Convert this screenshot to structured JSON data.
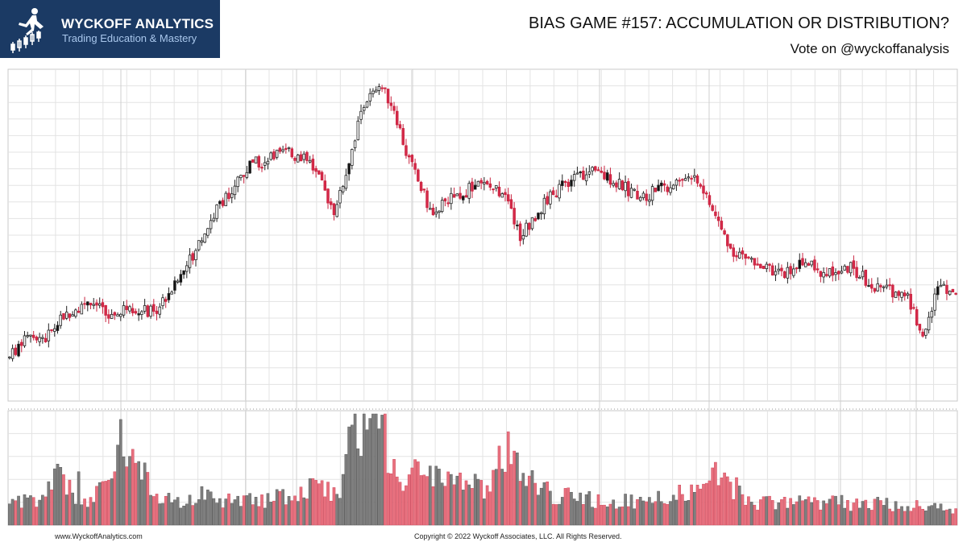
{
  "brand": {
    "name": "WYCKOFF ANALYTICS",
    "tagline": "Trading Education & Mastery",
    "logo_icon": "runner-on-candles-icon",
    "background": "#1b3a64"
  },
  "header": {
    "title": "BIAS GAME #157: ACCUMULATION OR DISTRIBUTION?",
    "subtitle": "Vote on @wyckoffanalysis"
  },
  "footer": {
    "website": "www.WyckoffAnalytics.com",
    "copyright": "Copyright © 2022 Wyckoff Associates, LLC. All Rights Reserved."
  },
  "chart_data": {
    "type": "candlestick",
    "panels": [
      "price",
      "volume"
    ],
    "title": "",
    "xlabel": "",
    "ylabel": "",
    "grid": true,
    "legend": "none",
    "colors": {
      "up": "#ffffff",
      "up_outline": "#222222",
      "down": "#d62a4a",
      "volume_up": "#7f7f7f",
      "volume_down": "#e8707e"
    },
    "price_ylim": [
      0,
      100
    ],
    "volume_ylim": [
      0,
      100
    ],
    "price_control_points": [
      [
        0,
        12
      ],
      [
        6,
        20
      ],
      [
        12,
        18
      ],
      [
        18,
        25
      ],
      [
        26,
        30
      ],
      [
        34,
        24
      ],
      [
        40,
        28
      ],
      [
        48,
        26
      ],
      [
        56,
        36
      ],
      [
        62,
        46
      ],
      [
        70,
        60
      ],
      [
        80,
        72
      ],
      [
        92,
        76
      ],
      [
        100,
        73
      ],
      [
        108,
        58
      ],
      [
        112,
        70
      ],
      [
        118,
        92
      ],
      [
        124,
        96
      ],
      [
        128,
        90
      ],
      [
        132,
        76
      ],
      [
        140,
        58
      ],
      [
        148,
        62
      ],
      [
        156,
        66
      ],
      [
        164,
        64
      ],
      [
        170,
        50
      ],
      [
        176,
        58
      ],
      [
        184,
        66
      ],
      [
        192,
        70
      ],
      [
        200,
        68
      ],
      [
        210,
        62
      ],
      [
        220,
        66
      ],
      [
        228,
        70
      ],
      [
        234,
        58
      ],
      [
        240,
        46
      ],
      [
        248,
        42
      ],
      [
        256,
        38
      ],
      [
        264,
        42
      ],
      [
        272,
        38
      ],
      [
        280,
        40
      ],
      [
        288,
        34
      ],
      [
        298,
        32
      ],
      [
        304,
        20
      ],
      [
        310,
        36
      ],
      [
        316,
        30
      ]
    ],
    "volume_control_points": [
      [
        0,
        20
      ],
      [
        8,
        22
      ],
      [
        17,
        45
      ],
      [
        24,
        20
      ],
      [
        34,
        45
      ],
      [
        37,
        90
      ],
      [
        50,
        22
      ],
      [
        62,
        28
      ],
      [
        70,
        26
      ],
      [
        86,
        25
      ],
      [
        96,
        32
      ],
      [
        100,
        38
      ],
      [
        110,
        30
      ],
      [
        114,
        90
      ],
      [
        120,
        80
      ],
      [
        123,
        95
      ],
      [
        130,
        50
      ],
      [
        140,
        45
      ],
      [
        150,
        38
      ],
      [
        160,
        35
      ],
      [
        166,
        78
      ],
      [
        170,
        50
      ],
      [
        180,
        28
      ],
      [
        200,
        22
      ],
      [
        220,
        24
      ],
      [
        236,
        45
      ],
      [
        250,
        20
      ],
      [
        270,
        22
      ],
      [
        290,
        20
      ],
      [
        306,
        18
      ],
      [
        316,
        14
      ]
    ],
    "volume_spikes": [
      {
        "bar": 37,
        "value": 95,
        "direction": "up"
      },
      {
        "bar": 114,
        "value": 90,
        "direction": "up"
      },
      {
        "bar": 124,
        "value": 99,
        "direction": "up"
      },
      {
        "bar": 166,
        "value": 84,
        "direction": "down"
      },
      {
        "bar": 238,
        "value": 47,
        "direction": "down"
      },
      {
        "bar": 23,
        "value": 48,
        "direction": "up"
      },
      {
        "bar": 35,
        "value": 48,
        "direction": "down"
      }
    ],
    "bar_count": 316
  }
}
